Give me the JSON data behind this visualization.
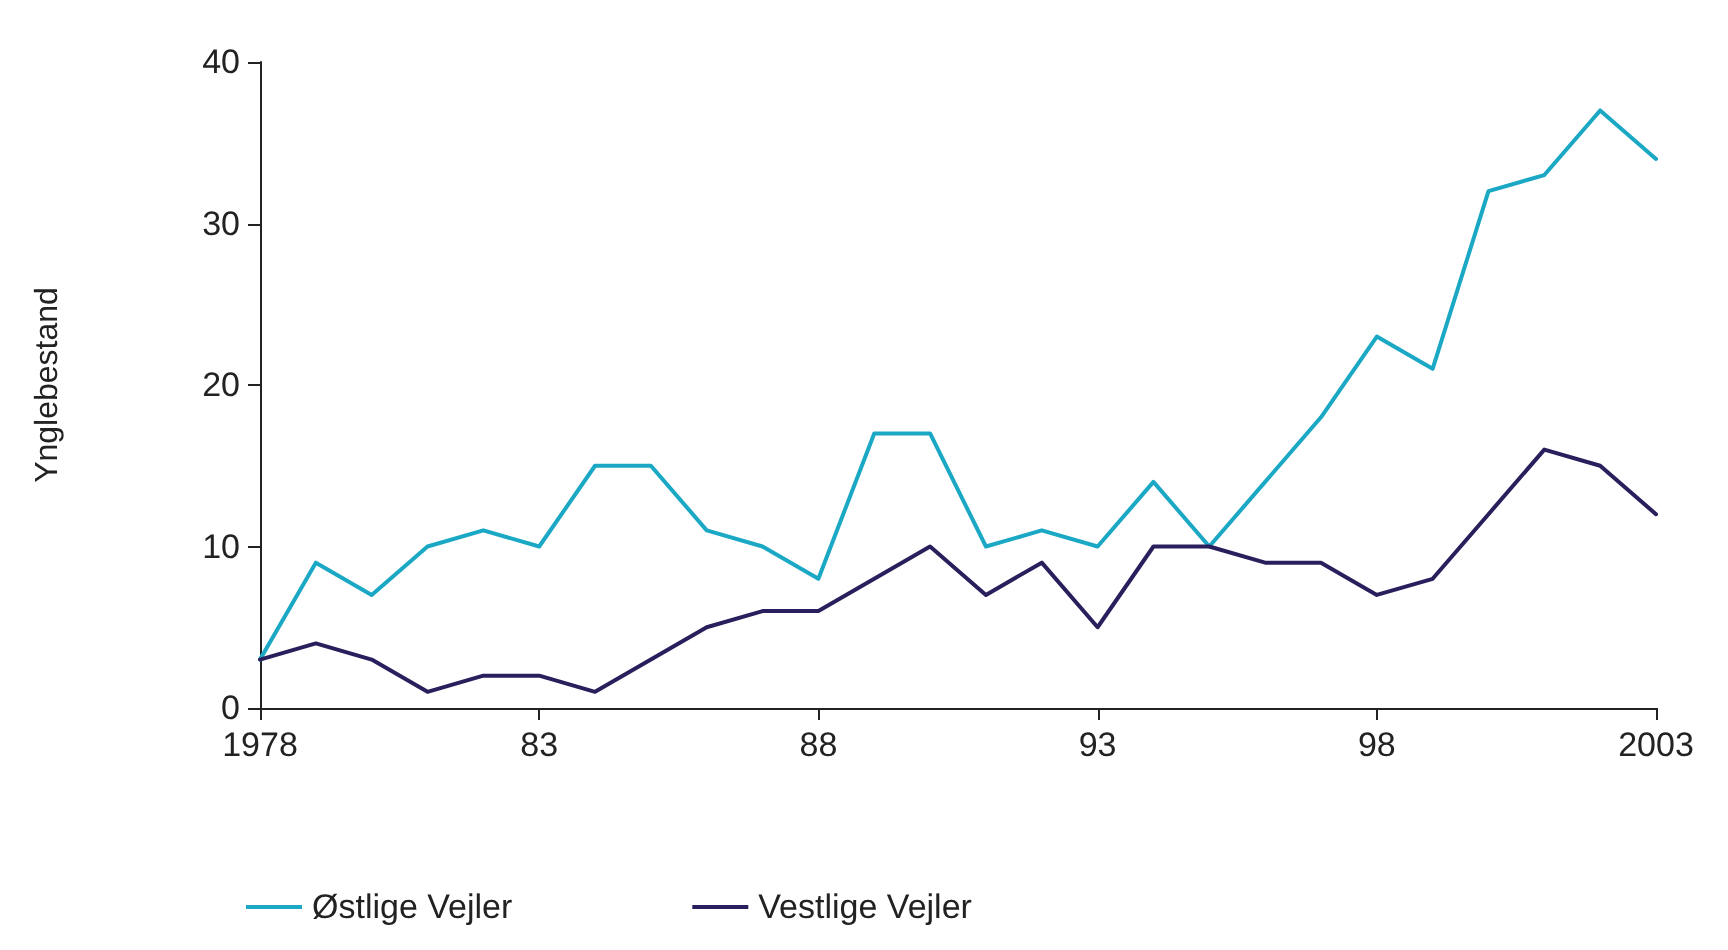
{
  "chart_data": {
    "type": "line",
    "ylabel": "Ynglebestand",
    "x": [
      1978,
      1979,
      1980,
      1981,
      1982,
      1983,
      1984,
      1985,
      1986,
      1987,
      1988,
      1989,
      1990,
      1991,
      1992,
      1993,
      1994,
      1995,
      1996,
      1997,
      1998,
      1999,
      2000,
      2001,
      2002,
      2003
    ],
    "series": [
      {
        "name": "Østlige Vejler",
        "color": "#1ba8c4",
        "values": [
          3,
          9,
          7,
          10,
          11,
          10,
          15,
          15,
          11,
          10,
          8,
          17,
          17,
          10,
          11,
          10,
          14,
          10,
          14,
          18,
          23,
          21,
          32,
          33,
          37,
          34
        ]
      },
      {
        "name": "Vestlige Vejler",
        "color": "#2a1f5c",
        "values": [
          3,
          4,
          3,
          1,
          2,
          2,
          1,
          3,
          5,
          6,
          6,
          8,
          10,
          7,
          9,
          5,
          10,
          10,
          9,
          9,
          7,
          8,
          12,
          16,
          15,
          12
        ]
      }
    ],
    "xlim": [
      1978,
      2003
    ],
    "xticks": [
      {
        "value": 1978,
        "label": "1978"
      },
      {
        "value": 1983,
        "label": "83"
      },
      {
        "value": 1988,
        "label": "88"
      },
      {
        "value": 1993,
        "label": "93"
      },
      {
        "value": 1998,
        "label": "98"
      },
      {
        "value": 2003,
        "label": "2003"
      }
    ],
    "ylim": [
      0,
      40
    ],
    "yticks": [
      0,
      10,
      20,
      30,
      40
    ],
    "grid": false,
    "legend": "bottom left",
    "marker": "none",
    "line_style": "solid"
  }
}
